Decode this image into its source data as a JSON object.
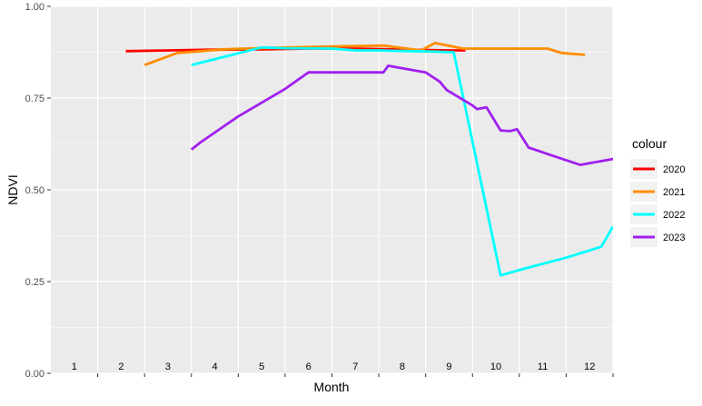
{
  "chart_data": {
    "type": "line",
    "title": "",
    "xlabel": "Month",
    "ylabel": "NDVI",
    "xlim": [
      0.5,
      12.5
    ],
    "ylim": [
      0,
      1
    ],
    "x_categories": [
      "1",
      "2",
      "3",
      "4",
      "5",
      "6",
      "7",
      "8",
      "9",
      "10",
      "11",
      "12"
    ],
    "y_ticks": [
      0.0,
      0.25,
      0.5,
      0.75,
      1.0
    ],
    "y_tick_labels": [
      "0.00",
      "0.25",
      "0.50",
      "0.75",
      "1.00"
    ],
    "x_tick_positions": [
      1.5,
      2.5,
      3.5,
      4.5,
      5.5,
      6.5,
      7.5,
      8.5,
      9.5,
      10.5,
      11.5,
      12.5
    ],
    "grid": true,
    "legend": {
      "title": "colour",
      "position": "right"
    },
    "series": [
      {
        "name": "2020",
        "color": "#FF0000",
        "points": [
          [
            2.1,
            0.878
          ],
          [
            3.0,
            0.88
          ],
          [
            4.0,
            0.882
          ],
          [
            5.0,
            0.883
          ],
          [
            6.0,
            0.885
          ],
          [
            7.0,
            0.885
          ],
          [
            8.0,
            0.882
          ],
          [
            9.0,
            0.88
          ],
          [
            9.35,
            0.88
          ]
        ]
      },
      {
        "name": "2021",
        "color": "#FF8C00",
        "points": [
          [
            2.5,
            0.84
          ],
          [
            3.2,
            0.873
          ],
          [
            4.2,
            0.883
          ],
          [
            5.2,
            0.887
          ],
          [
            6.3,
            0.89
          ],
          [
            7.1,
            0.892
          ],
          [
            7.6,
            0.893
          ],
          [
            8.4,
            0.88
          ],
          [
            8.7,
            0.9
          ],
          [
            9.3,
            0.885
          ],
          [
            10.3,
            0.885
          ],
          [
            11.1,
            0.885
          ],
          [
            11.4,
            0.873
          ],
          [
            11.9,
            0.868
          ]
        ]
      },
      {
        "name": "2022",
        "color": "#00FFFF",
        "points": [
          [
            3.5,
            0.84
          ],
          [
            4.5,
            0.872
          ],
          [
            5.0,
            0.888
          ],
          [
            5.5,
            0.886
          ],
          [
            6.5,
            0.885
          ],
          [
            7.0,
            0.88
          ],
          [
            7.5,
            0.88
          ],
          [
            8.1,
            0.878
          ],
          [
            8.6,
            0.877
          ],
          [
            9.1,
            0.875
          ],
          [
            10.1,
            0.267
          ],
          [
            10.6,
            0.285
          ],
          [
            11.5,
            0.315
          ],
          [
            12.0,
            0.335
          ],
          [
            12.25,
            0.345
          ],
          [
            12.5,
            0.4
          ]
        ]
      },
      {
        "name": "2023",
        "color": "#A020F0",
        "points": [
          [
            3.5,
            0.61
          ],
          [
            3.7,
            0.63
          ],
          [
            4.5,
            0.7
          ],
          [
            5.5,
            0.775
          ],
          [
            6.0,
            0.82
          ],
          [
            6.5,
            0.82
          ],
          [
            7.0,
            0.82
          ],
          [
            7.6,
            0.82
          ],
          [
            7.7,
            0.838
          ],
          [
            8.5,
            0.82
          ],
          [
            8.8,
            0.795
          ],
          [
            8.95,
            0.772
          ],
          [
            9.5,
            0.73
          ],
          [
            9.6,
            0.72
          ],
          [
            9.8,
            0.725
          ],
          [
            10.1,
            0.662
          ],
          [
            10.3,
            0.66
          ],
          [
            10.45,
            0.665
          ],
          [
            10.7,
            0.615
          ],
          [
            11.4,
            0.585
          ],
          [
            11.8,
            0.568
          ],
          [
            12.1,
            0.575
          ],
          [
            13.0,
            0.595
          ]
        ]
      }
    ]
  }
}
